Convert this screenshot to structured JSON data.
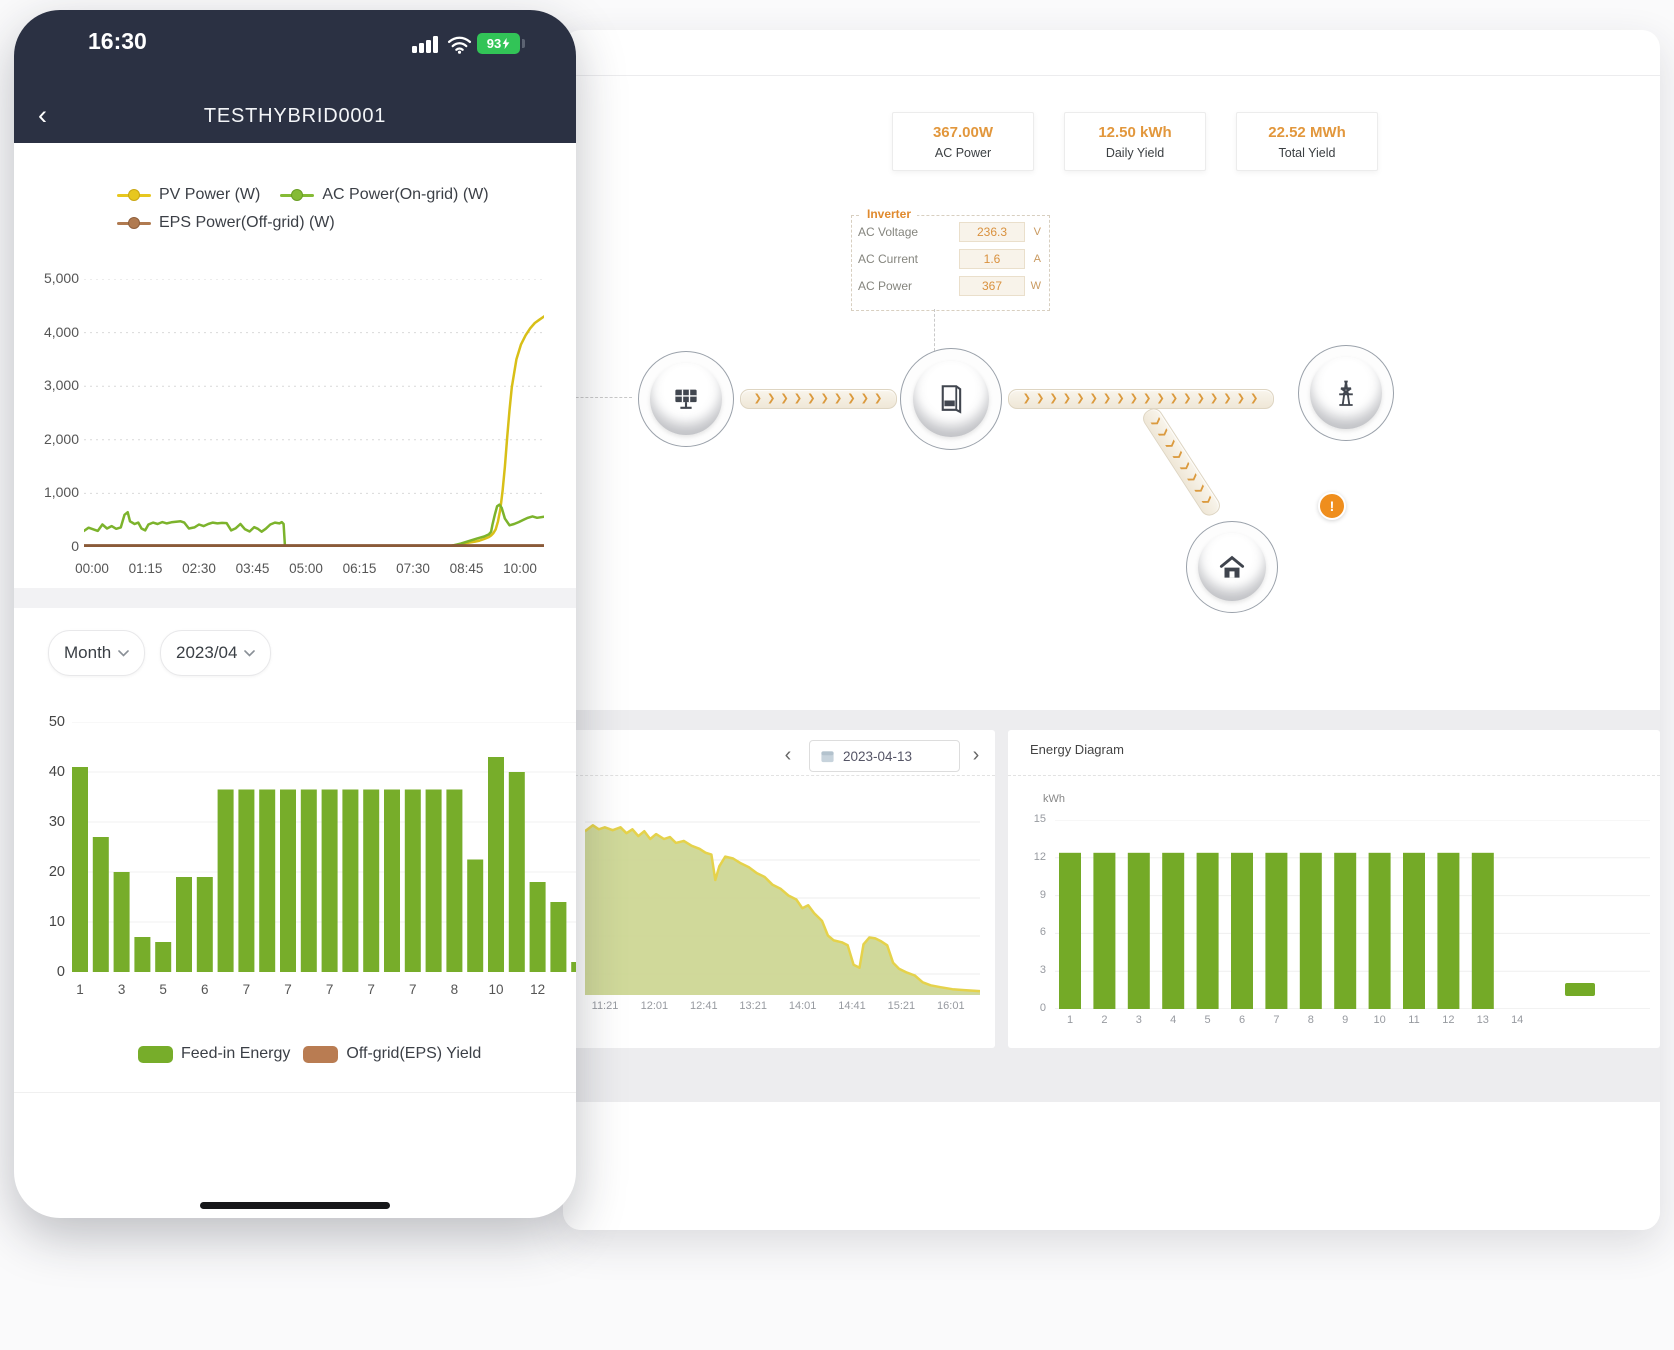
{
  "phone": {
    "status_bar": {
      "time": "16:30",
      "battery_percent": "93"
    },
    "nav": {
      "back_icon": "‹",
      "title": "TESTHYBRID0001"
    },
    "power_chart": {
      "type": "line",
      "y_max": 5000,
      "y_ticks": [
        "5,000",
        "4,000",
        "3,000",
        "2,000",
        "1,000",
        "0"
      ],
      "x_ticks": [
        "00:00",
        "01:15",
        "02:30",
        "03:45",
        "05:00",
        "06:15",
        "07:30",
        "08:45",
        "10:00"
      ],
      "legend": [
        {
          "label": "PV Power (W)",
          "fill": "#e7c71f",
          "stroke": "#c9a713"
        },
        {
          "label": "AC Power(On-grid) (W)",
          "fill": "#85bb36",
          "stroke": "#699e23"
        },
        {
          "label": "EPS Power(Off-grid) (W)",
          "fill": "#b07a50",
          "stroke": "#8f5f3c"
        }
      ],
      "series": [
        {
          "name": "PV Power (W)",
          "color": "#d8bf17",
          "width": 2.5,
          "points": [
            [
              0,
              0
            ],
            [
              0.76,
              0
            ],
            [
              0.79,
              15
            ],
            [
              0.81,
              40
            ],
            [
              0.83,
              70
            ],
            [
              0.85,
              100
            ],
            [
              0.86,
              120
            ],
            [
              0.87,
              150
            ],
            [
              0.88,
              185
            ],
            [
              0.885,
              215
            ],
            [
              0.89,
              260
            ],
            [
              0.895,
              330
            ],
            [
              0.9,
              480
            ],
            [
              0.905,
              700
            ],
            [
              0.91,
              1050
            ],
            [
              0.915,
              1500
            ],
            [
              0.92,
              2050
            ],
            [
              0.925,
              2550
            ],
            [
              0.93,
              2980
            ],
            [
              0.94,
              3500
            ],
            [
              0.95,
              3780
            ],
            [
              0.96,
              3950
            ],
            [
              0.97,
              4080
            ],
            [
              0.98,
              4180
            ],
            [
              0.99,
              4240
            ],
            [
              1,
              4300
            ]
          ]
        },
        {
          "name": "AC Power(On-grid) (W)",
          "color": "#7cb32c",
          "width": 2.5,
          "points": [
            [
              0,
              300
            ],
            [
              0.01,
              360
            ],
            [
              0.02,
              330
            ],
            [
              0.03,
              300
            ],
            [
              0.04,
              420
            ],
            [
              0.05,
              345
            ],
            [
              0.06,
              390
            ],
            [
              0.07,
              340
            ],
            [
              0.08,
              365
            ],
            [
              0.088,
              600
            ],
            [
              0.095,
              650
            ],
            [
              0.1,
              480
            ],
            [
              0.11,
              430
            ],
            [
              0.118,
              455
            ],
            [
              0.125,
              345
            ],
            [
              0.133,
              310
            ],
            [
              0.14,
              420
            ],
            [
              0.15,
              455
            ],
            [
              0.16,
              430
            ],
            [
              0.17,
              465
            ],
            [
              0.18,
              440
            ],
            [
              0.19,
              460
            ],
            [
              0.2,
              470
            ],
            [
              0.21,
              480
            ],
            [
              0.218,
              455
            ],
            [
              0.228,
              345
            ],
            [
              0.24,
              365
            ],
            [
              0.25,
              420
            ],
            [
              0.26,
              390
            ],
            [
              0.27,
              430
            ],
            [
              0.28,
              455
            ],
            [
              0.29,
              440
            ],
            [
              0.3,
              450
            ],
            [
              0.31,
              445
            ],
            [
              0.32,
              310
            ],
            [
              0.33,
              350
            ],
            [
              0.34,
              430
            ],
            [
              0.35,
              330
            ],
            [
              0.36,
              290
            ],
            [
              0.37,
              370
            ],
            [
              0.378,
              340
            ],
            [
              0.386,
              285
            ],
            [
              0.395,
              340
            ],
            [
              0.405,
              420
            ],
            [
              0.415,
              455
            ],
            [
              0.425,
              440
            ],
            [
              0.43,
              465
            ],
            [
              0.434,
              430
            ],
            [
              0.437,
              0
            ],
            [
              0.78,
              0
            ],
            [
              0.8,
              25
            ],
            [
              0.82,
              65
            ],
            [
              0.84,
              120
            ],
            [
              0.855,
              160
            ],
            [
              0.87,
              195
            ],
            [
              0.88,
              235
            ],
            [
              0.885,
              285
            ],
            [
              0.888,
              420
            ],
            [
              0.893,
              600
            ],
            [
              0.898,
              760
            ],
            [
              0.903,
              790
            ],
            [
              0.908,
              730
            ],
            [
              0.915,
              530
            ],
            [
              0.925,
              405
            ],
            [
              0.935,
              430
            ],
            [
              0.945,
              465
            ],
            [
              0.955,
              505
            ],
            [
              0.965,
              545
            ],
            [
              0.975,
              570
            ],
            [
              0.985,
              545
            ],
            [
              1,
              565
            ]
          ]
        },
        {
          "name": "EPS Power(Off-grid) (W)",
          "color": "#8a5a38",
          "width": 3.5,
          "points": [
            [
              0,
              20
            ],
            [
              1,
              20
            ]
          ]
        }
      ]
    },
    "filters": {
      "period": "Month",
      "month": "2023/04"
    },
    "month_chart": {
      "type": "bar",
      "bar_color": "#77ad2a",
      "y_max": 50,
      "y_ticks": [
        "50",
        "40",
        "30",
        "20",
        "10",
        "0"
      ],
      "values": [
        41,
        27,
        20,
        7,
        6,
        19,
        19,
        36.5,
        36.5,
        36.5,
        36.5,
        36.5,
        36.5,
        36.5,
        36.5,
        36.5,
        36.5,
        36.5,
        36.5,
        22.5,
        43,
        40,
        18,
        14,
        2
      ],
      "x_labels": [
        "1",
        "3",
        "5",
        "6",
        "7",
        "7",
        "7",
        "7",
        "7",
        "8",
        "10",
        "12"
      ],
      "legend": [
        {
          "label": "Feed-in Energy",
          "color": "#77ad2a"
        },
        {
          "label": "Off-grid(EPS) Yield",
          "color": "#b97c52"
        }
      ]
    }
  },
  "desktop": {
    "stats": [
      {
        "value": "367.00W",
        "label": "AC Power"
      },
      {
        "value": "12.50 kWh",
        "label": "Daily Yield"
      },
      {
        "value": "22.52 MWh",
        "label": "Total Yield"
      }
    ],
    "inverter_panel": {
      "title": "Inverter",
      "rows": [
        {
          "label": "AC Voltage",
          "value": "236.3",
          "unit": "V"
        },
        {
          "label": "AC Current",
          "value": "1.6",
          "unit": "A"
        },
        {
          "label": "AC Power",
          "value": "367",
          "unit": "W"
        }
      ]
    },
    "flow": {
      "chevron_icon": "❯",
      "alert_icon": "!"
    },
    "day_panel": {
      "prev_icon": "‹",
      "next_icon": "›",
      "date": "2023-04-13",
      "chart": {
        "type": "area",
        "fill": "#cdd795",
        "stroke": "#e5d24b",
        "x_ticks": [
          "11:21",
          "12:01",
          "12:41",
          "13:21",
          "14:01",
          "14:41",
          "15:21",
          "16:01"
        ],
        "points": [
          [
            0,
            0.84
          ],
          [
            0.02,
            0.87
          ],
          [
            0.035,
            0.85
          ],
          [
            0.05,
            0.86
          ],
          [
            0.07,
            0.845
          ],
          [
            0.09,
            0.86
          ],
          [
            0.105,
            0.83
          ],
          [
            0.12,
            0.85
          ],
          [
            0.135,
            0.815
          ],
          [
            0.15,
            0.84
          ],
          [
            0.165,
            0.8
          ],
          [
            0.18,
            0.825
          ],
          [
            0.2,
            0.8
          ],
          [
            0.215,
            0.81
          ],
          [
            0.23,
            0.78
          ],
          [
            0.25,
            0.79
          ],
          [
            0.27,
            0.765
          ],
          [
            0.29,
            0.75
          ],
          [
            0.305,
            0.73
          ],
          [
            0.32,
            0.72
          ],
          [
            0.33,
            0.59
          ],
          [
            0.34,
            0.66
          ],
          [
            0.355,
            0.71
          ],
          [
            0.375,
            0.7
          ],
          [
            0.395,
            0.675
          ],
          [
            0.415,
            0.655
          ],
          [
            0.435,
            0.625
          ],
          [
            0.455,
            0.605
          ],
          [
            0.475,
            0.565
          ],
          [
            0.495,
            0.545
          ],
          [
            0.515,
            0.51
          ],
          [
            0.535,
            0.49
          ],
          [
            0.55,
            0.445
          ],
          [
            0.565,
            0.46
          ],
          [
            0.58,
            0.42
          ],
          [
            0.6,
            0.38
          ],
          [
            0.615,
            0.305
          ],
          [
            0.63,
            0.28
          ],
          [
            0.65,
            0.27
          ],
          [
            0.665,
            0.255
          ],
          [
            0.68,
            0.155
          ],
          [
            0.695,
            0.14
          ],
          [
            0.705,
            0.26
          ],
          [
            0.72,
            0.295
          ],
          [
            0.735,
            0.29
          ],
          [
            0.75,
            0.275
          ],
          [
            0.765,
            0.255
          ],
          [
            0.78,
            0.165
          ],
          [
            0.795,
            0.135
          ],
          [
            0.815,
            0.115
          ],
          [
            0.835,
            0.1
          ],
          [
            0.855,
            0.065
          ],
          [
            0.875,
            0.05
          ],
          [
            0.9,
            0.04
          ],
          [
            0.93,
            0.03
          ],
          [
            0.96,
            0.025
          ],
          [
            1,
            0.02
          ]
        ]
      }
    },
    "energy_panel": {
      "title": "Energy Diagram",
      "unit": "kWh",
      "chart": {
        "type": "bar",
        "bar_color": "#74aa27",
        "y_max": 15,
        "y_ticks": [
          "15",
          "12",
          "9",
          "6",
          "3",
          "0"
        ],
        "categories": [
          "1",
          "2",
          "3",
          "4",
          "5",
          "6",
          "7",
          "8",
          "9",
          "10",
          "11",
          "12",
          "13",
          "14"
        ],
        "values": [
          12.4,
          12.4,
          12.4,
          12.4,
          12.4,
          12.4,
          12.4,
          12.4,
          12.4,
          12.4,
          12.4,
          12.4,
          12.4,
          null
        ],
        "legend_color": "#74aa27"
      }
    }
  }
}
